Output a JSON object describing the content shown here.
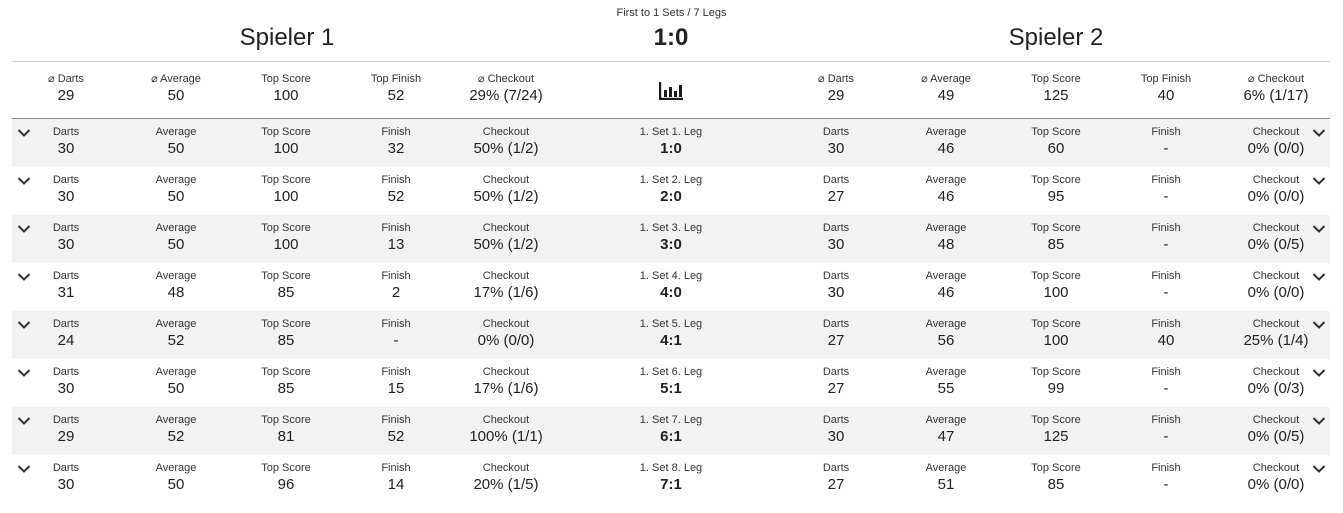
{
  "match": {
    "format": "First to 1 Sets / 7 Legs",
    "player1": "Spieler 1",
    "player2": "Spieler 2",
    "score": "1:0"
  },
  "labels": {
    "avg_darts": "⌀ Darts",
    "avg_average": "⌀ Average",
    "top_score": "Top Score",
    "top_finish": "Top Finish",
    "avg_checkout": "⌀ Checkout",
    "darts": "Darts",
    "average": "Average",
    "finish": "Finish",
    "checkout": "Checkout"
  },
  "summary": {
    "p1": {
      "darts": "29",
      "average": "50",
      "top_score": "100",
      "top_finish": "52",
      "checkout": "29% (7/24)"
    },
    "p2": {
      "darts": "29",
      "average": "49",
      "top_score": "125",
      "top_finish": "40",
      "checkout": "6% (1/17)"
    },
    "stats_icon": "bar-chart-icon"
  },
  "legs": [
    {
      "title": "1. Set 1. Leg",
      "score": "1:0",
      "p1": {
        "darts": "30",
        "average": "50",
        "top_score": "100",
        "finish": "32",
        "checkout": "50% (1/2)"
      },
      "p2": {
        "darts": "30",
        "average": "46",
        "top_score": "60",
        "finish": "-",
        "checkout": "0% (0/0)"
      }
    },
    {
      "title": "1. Set 2. Leg",
      "score": "2:0",
      "p1": {
        "darts": "30",
        "average": "50",
        "top_score": "100",
        "finish": "52",
        "checkout": "50% (1/2)"
      },
      "p2": {
        "darts": "27",
        "average": "46",
        "top_score": "95",
        "finish": "-",
        "checkout": "0% (0/0)"
      }
    },
    {
      "title": "1. Set 3. Leg",
      "score": "3:0",
      "p1": {
        "darts": "30",
        "average": "50",
        "top_score": "100",
        "finish": "13",
        "checkout": "50% (1/2)"
      },
      "p2": {
        "darts": "30",
        "average": "48",
        "top_score": "85",
        "finish": "-",
        "checkout": "0% (0/5)"
      }
    },
    {
      "title": "1. Set 4. Leg",
      "score": "4:0",
      "p1": {
        "darts": "31",
        "average": "48",
        "top_score": "85",
        "finish": "2",
        "checkout": "17% (1/6)"
      },
      "p2": {
        "darts": "30",
        "average": "46",
        "top_score": "100",
        "finish": "-",
        "checkout": "0% (0/0)"
      }
    },
    {
      "title": "1. Set 5. Leg",
      "score": "4:1",
      "p1": {
        "darts": "24",
        "average": "52",
        "top_score": "85",
        "finish": "-",
        "checkout": "0% (0/0)"
      },
      "p2": {
        "darts": "27",
        "average": "56",
        "top_score": "100",
        "finish": "40",
        "checkout": "25% (1/4)"
      }
    },
    {
      "title": "1. Set 6. Leg",
      "score": "5:1",
      "p1": {
        "darts": "30",
        "average": "50",
        "top_score": "85",
        "finish": "15",
        "checkout": "17% (1/6)"
      },
      "p2": {
        "darts": "27",
        "average": "55",
        "top_score": "99",
        "finish": "-",
        "checkout": "0% (0/3)"
      }
    },
    {
      "title": "1. Set 7. Leg",
      "score": "6:1",
      "p1": {
        "darts": "29",
        "average": "52",
        "top_score": "81",
        "finish": "52",
        "checkout": "100% (1/1)"
      },
      "p2": {
        "darts": "30",
        "average": "47",
        "top_score": "125",
        "finish": "-",
        "checkout": "0% (0/5)"
      }
    },
    {
      "title": "1. Set 8. Leg",
      "score": "7:1",
      "p1": {
        "darts": "30",
        "average": "50",
        "top_score": "96",
        "finish": "14",
        "checkout": "20% (1/5)"
      },
      "p2": {
        "darts": "27",
        "average": "51",
        "top_score": "85",
        "finish": "-",
        "checkout": "0% (0/0)"
      }
    }
  ],
  "icons": {
    "expand": "chevron-down-icon"
  }
}
